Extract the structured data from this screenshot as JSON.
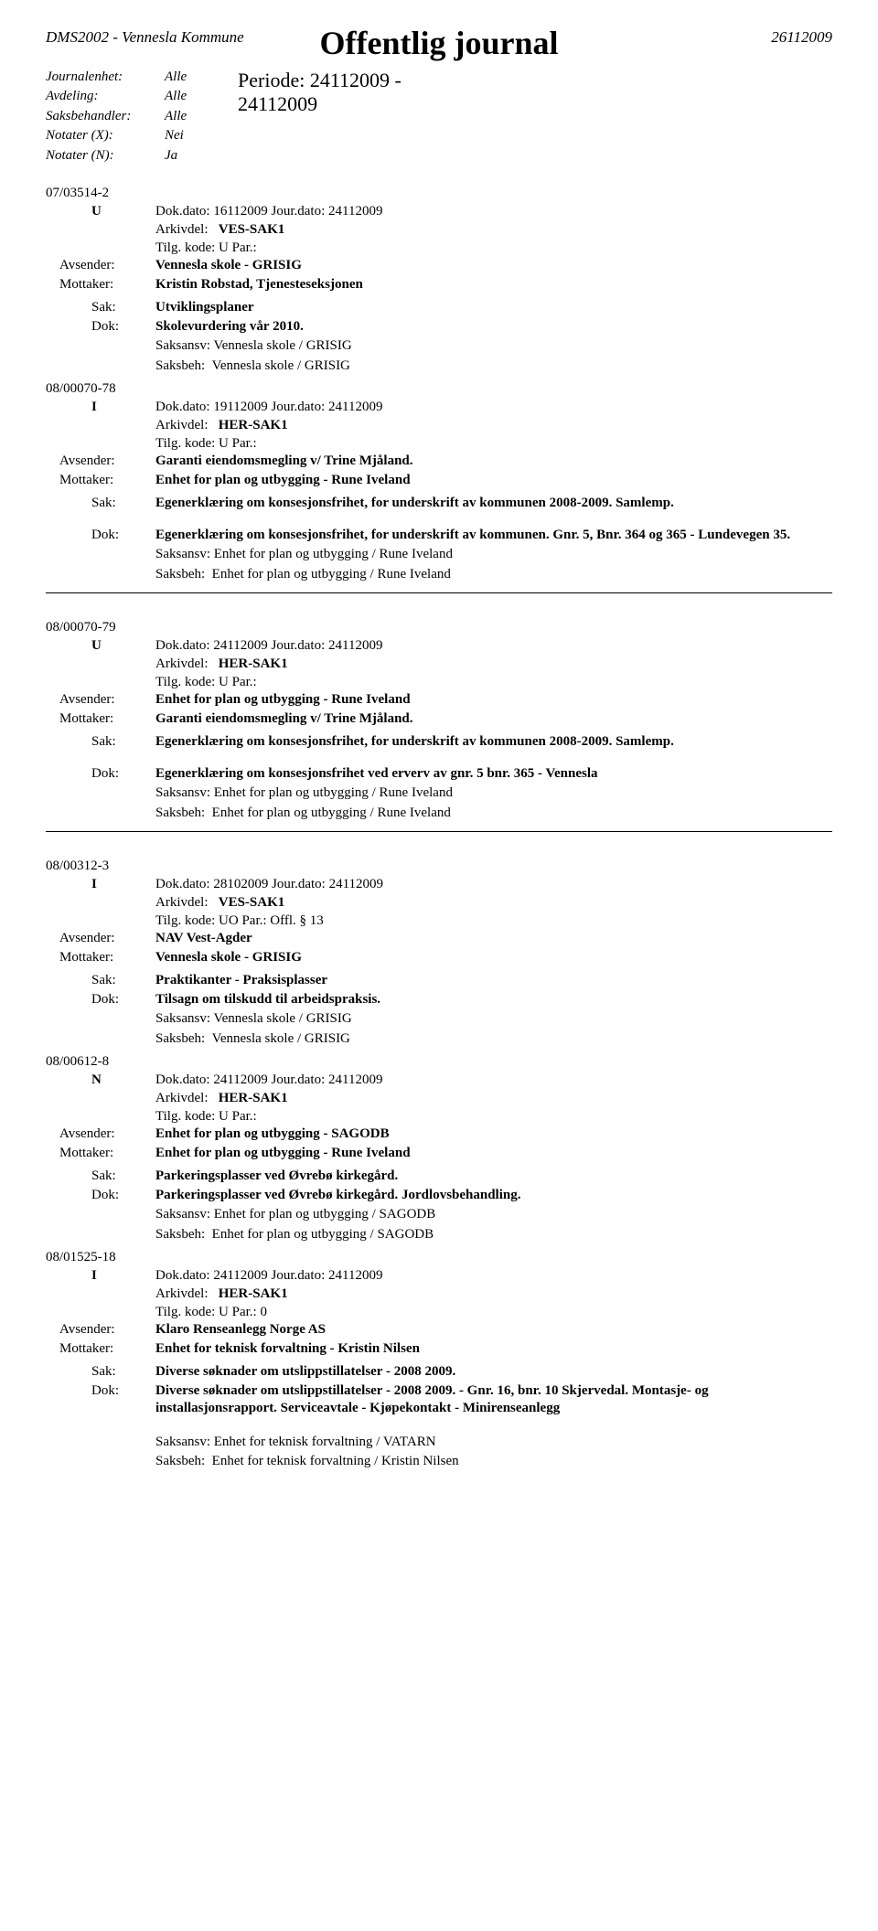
{
  "header": {
    "system": "DMS2002 - Vennesla Kommune",
    "date": "26112009"
  },
  "title": "Offentlig journal",
  "meta": {
    "journalenhet_label": "Journalenhet:",
    "journalenhet_value": "Alle",
    "avdeling_label": "Avdeling:",
    "avdeling_value": "Alle",
    "saksbehandler_label": "Saksbehandler:",
    "saksbehandler_value": "Alle",
    "notater_x_label": "Notater (X):",
    "notater_x_value": "Nei",
    "notater_n_label": "Notater (N):",
    "notater_n_value": "Ja"
  },
  "periode": {
    "label": "Periode:",
    "range1": "24112009 -",
    "range2": "24112009"
  },
  "labels": {
    "avsender": "Avsender:",
    "mottaker": "Mottaker:",
    "sak": "Sak:",
    "dok": "Dok:",
    "saksansv": "Saksansv:",
    "saksbeh": "Saksbeh:",
    "arkivdel": "Arkivdel:",
    "tilg_kode": "Tilg. kode:",
    "par": "Par.:"
  },
  "entries": [
    {
      "case_id": "07/03514-2",
      "type_code": "U",
      "dok_dato": "Dok.dato: 16112009   Jour.dato:   24112009",
      "arkivdel": "VES-SAK1",
      "tilg_line": "Tilg. kode:  U        Par.:",
      "avsender": "Vennesla skole - GRISIG",
      "mottaker": "Kristin Robstad, Tjenesteseksjonen",
      "sak": "Utviklingsplaner",
      "dok": "Skolevurdering vår 2010.",
      "saksansv": "Vennesla skole / GRISIG",
      "saksbeh": "Vennesla skole / GRISIG",
      "has_divider": false
    },
    {
      "case_id": "08/00070-78",
      "type_code": "I",
      "dok_dato": "Dok.dato: 19112009   Jour.dato:   24112009",
      "arkivdel": "HER-SAK1",
      "tilg_line": "Tilg. kode:  U        Par.:",
      "avsender": "Garanti eiendomsmegling v/ Trine Mjåland.",
      "mottaker": "Enhet for plan og utbygging - Rune Iveland",
      "sak": "Egenerklæring om konsesjonsfrihet, for underskrift av kommunen 2008-2009. Samlemp.",
      "dok": "Egenerklæring om konsesjonsfrihet, for underskrift av kommunen. Gnr. 5, Bnr. 364 og 365 - Lundevegen 35.",
      "saksansv": "Enhet for plan og utbygging / Rune Iveland",
      "saksbeh": "Enhet for plan og utbygging / Rune Iveland",
      "has_divider": true,
      "sak_spacer": true
    },
    {
      "case_id": "08/00070-79",
      "type_code": "U",
      "dok_dato": "Dok.dato: 24112009   Jour.dato:   24112009",
      "arkivdel": "HER-SAK1",
      "tilg_line": "Tilg. kode:  U        Par.:",
      "avsender": "Enhet for plan og utbygging - Rune Iveland",
      "mottaker": "Garanti eiendomsmegling v/ Trine Mjåland.",
      "sak": "Egenerklæring om konsesjonsfrihet, for underskrift av kommunen 2008-2009. Samlemp.",
      "dok": "Egenerklæring om konsesjonsfrihet ved erverv av gnr. 5 bnr. 365 - Vennesla",
      "saksansv": "Enhet for plan og utbygging / Rune Iveland",
      "saksbeh": "Enhet for plan og utbygging / Rune Iveland",
      "has_divider": true,
      "sak_spacer": true
    },
    {
      "case_id": "08/00312-3",
      "type_code": "I",
      "dok_dato": "Dok.dato: 28102009   Jour.dato:   24112009",
      "arkivdel": "VES-SAK1",
      "tilg_line": "Tilg. kode:  UO      Par.:  Offl. § 13",
      "avsender": "NAV Vest-Agder",
      "mottaker": "Vennesla skole - GRISIG",
      "sak": "Praktikanter - Praksisplasser",
      "dok": "Tilsagn om tilskudd til arbeidspraksis.",
      "saksansv": "Vennesla skole / GRISIG",
      "saksbeh": "Vennesla skole / GRISIG",
      "has_divider": false
    },
    {
      "case_id": "08/00612-8",
      "type_code": "N",
      "dok_dato": "Dok.dato: 24112009   Jour.dato:   24112009",
      "arkivdel": "HER-SAK1",
      "tilg_line": "Tilg. kode:  U        Par.:",
      "avsender": "Enhet for plan og utbygging - SAGODB",
      "mottaker": "Enhet for plan og utbygging - Rune Iveland",
      "sak": "Parkeringsplasser ved Øvrebø kirkegård.",
      "dok": "Parkeringsplasser ved Øvrebø kirkegård. Jordlovsbehandling.",
      "saksansv": "Enhet for plan og utbygging / SAGODB",
      "saksbeh": "Enhet for plan og utbygging / SAGODB",
      "has_divider": false
    },
    {
      "case_id": "08/01525-18",
      "type_code": "I",
      "dok_dato": "Dok.dato: 24112009   Jour.dato:   24112009",
      "arkivdel": "HER-SAK1",
      "tilg_line": "Tilg. kode:  U        Par.:  0",
      "avsender": "Klaro Renseanlegg Norge AS",
      "mottaker": "Enhet for teknisk forvaltning - Kristin Nilsen",
      "sak": "Diverse søknader om utslippstillatelser - 2008 2009.",
      "dok": "Diverse søknader om utslippstillatelser - 2008 2009. - Gnr. 16, bnr. 10 Skjervedal. Montasje- og installasjonsrapport. Serviceavtale - Kjøpekontakt - Minirenseanlegg",
      "saksansv": "Enhet for teknisk forvaltning / VATARN",
      "saksbeh": "Enhet for teknisk forvaltning / Kristin Nilsen",
      "has_divider": false,
      "extra_spacer": true
    }
  ]
}
